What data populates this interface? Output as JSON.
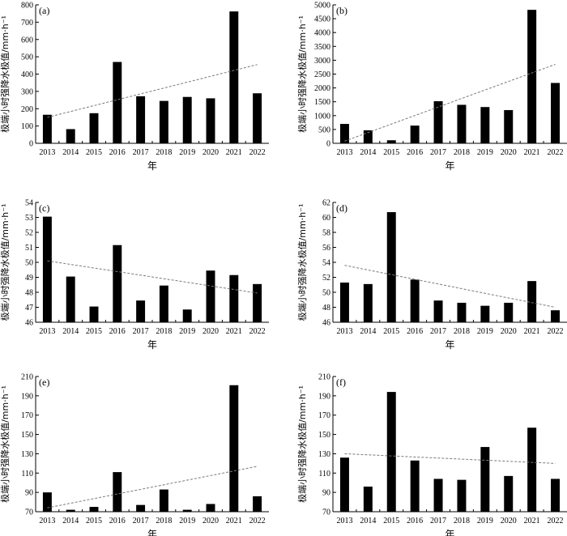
{
  "chart_data": [
    {
      "type": "bar",
      "panel_label": "(a)",
      "categories": [
        "2013",
        "2014",
        "2015",
        "2016",
        "2017",
        "2018",
        "2019",
        "2020",
        "2021",
        "2022"
      ],
      "values": [
        165,
        82,
        174,
        470,
        272,
        245,
        268,
        260,
        762,
        289
      ],
      "ylim": [
        0,
        800
      ],
      "yticks": [
        0,
        100,
        200,
        300,
        400,
        500,
        600,
        700,
        800
      ],
      "trend": [
        150,
        455
      ],
      "xlabel": "年",
      "ylabel": "极端小时强降水极值/mm·h⁻¹"
    },
    {
      "type": "bar",
      "panel_label": "(b)",
      "categories": [
        "2013",
        "2014",
        "2015",
        "2016",
        "2017",
        "2018",
        "2019",
        "2020",
        "2021",
        "2022"
      ],
      "values": [
        700,
        470,
        110,
        640,
        1520,
        1390,
        1310,
        1200,
        4820,
        2180
      ],
      "ylim": [
        0,
        5000
      ],
      "yticks": [
        0,
        500,
        1000,
        1500,
        2000,
        2500,
        3000,
        3500,
        4000,
        4500,
        5000
      ],
      "trend": [
        80,
        2850
      ],
      "xlabel": "年",
      "ylabel": "极端小时强降水极值/mm·h⁻¹"
    },
    {
      "type": "bar",
      "panel_label": "(c)",
      "categories": [
        "2013",
        "2014",
        "2015",
        "2016",
        "2017",
        "2018",
        "2019",
        "2020",
        "2021",
        "2022"
      ],
      "values": [
        53.05,
        49.05,
        47.05,
        51.15,
        47.45,
        48.45,
        46.85,
        49.45,
        49.15,
        48.55
      ],
      "ylim": [
        46,
        54
      ],
      "yticks": [
        46,
        47,
        48,
        49,
        50,
        51,
        52,
        53,
        54
      ],
      "trend": [
        50.1,
        47.95
      ],
      "xlabel": "年",
      "ylabel": "极端小时强降水极值/mm·h⁻¹"
    },
    {
      "type": "bar",
      "panel_label": "(d)",
      "categories": [
        "2013",
        "2014",
        "2015",
        "2016",
        "2017",
        "2018",
        "2019",
        "2020",
        "2021",
        "2022"
      ],
      "values": [
        51.3,
        51.1,
        60.7,
        51.7,
        48.9,
        48.6,
        48.2,
        48.6,
        51.5,
        47.6
      ],
      "ylim": [
        46,
        62
      ],
      "yticks": [
        46,
        48,
        50,
        52,
        54,
        56,
        58,
        60,
        62
      ],
      "trend": [
        53.6,
        48.0
      ],
      "xlabel": "年",
      "ylabel": "极端小时强降水极值/mm·h⁻¹"
    },
    {
      "type": "bar",
      "panel_label": "(e)",
      "categories": [
        "2013",
        "2014",
        "2015",
        "2016",
        "2017",
        "2018",
        "2019",
        "2020",
        "2021",
        "2022"
      ],
      "values": [
        90,
        72,
        75,
        111,
        77,
        93,
        72,
        78,
        201,
        86
      ],
      "ylim": [
        70,
        210
      ],
      "yticks": [
        70,
        90,
        110,
        130,
        150,
        170,
        190,
        210
      ],
      "trend": [
        74,
        117
      ],
      "xlabel": "年",
      "ylabel": "极端小时强降水极值/mm·h⁻¹"
    },
    {
      "type": "bar",
      "panel_label": "(f)",
      "categories": [
        "2013",
        "2014",
        "2015",
        "2016",
        "2017",
        "2018",
        "2019",
        "2020",
        "2021",
        "2022"
      ],
      "values": [
        126,
        96,
        194,
        123,
        104,
        103,
        137,
        107,
        157,
        104
      ],
      "ylim": [
        70,
        210
      ],
      "yticks": [
        70,
        90,
        110,
        130,
        150,
        170,
        190,
        210
      ],
      "trend": [
        130,
        120
      ],
      "xlabel": "年",
      "ylabel": "极端小时强降水极值/mm·h⁻¹"
    }
  ]
}
